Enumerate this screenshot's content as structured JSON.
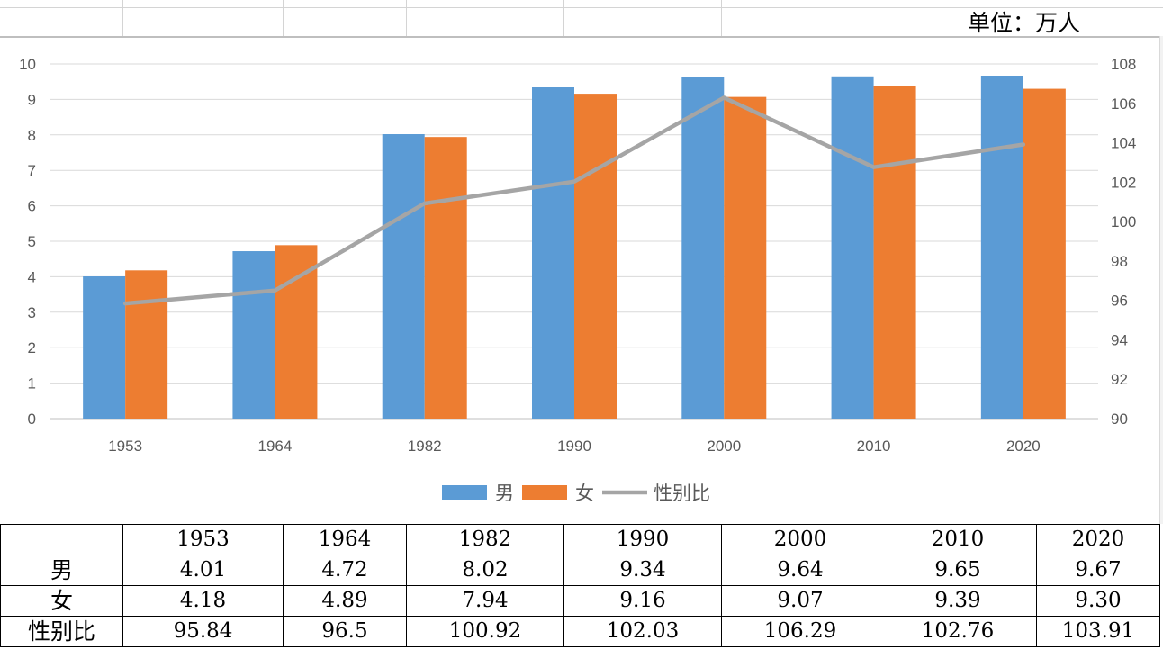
{
  "unit_label": "单位：万人",
  "chart_data": {
    "type": "bar",
    "categories": [
      "1953",
      "1964",
      "1982",
      "1990",
      "2000",
      "2010",
      "2020"
    ],
    "series": [
      {
        "name": "男",
        "type": "bar",
        "axis": "left",
        "color": "#5b9bd5",
        "values": [
          4.01,
          4.72,
          8.02,
          9.34,
          9.64,
          9.65,
          9.67
        ]
      },
      {
        "name": "女",
        "type": "bar",
        "axis": "left",
        "color": "#ed7d31",
        "values": [
          4.18,
          4.89,
          7.94,
          9.16,
          9.07,
          9.39,
          9.3
        ]
      },
      {
        "name": "性别比",
        "type": "line",
        "axis": "right",
        "color": "#a5a5a5",
        "values": [
          95.84,
          96.5,
          100.92,
          102.03,
          106.29,
          102.76,
          103.91
        ]
      }
    ],
    "y_left": {
      "min": 0,
      "max": 10,
      "step": 1,
      "ticks": [
        "0",
        "1",
        "2",
        "3",
        "4",
        "5",
        "6",
        "7",
        "8",
        "9",
        "10"
      ]
    },
    "y_right": {
      "min": 90,
      "max": 108,
      "step": 2,
      "ticks": [
        "90",
        "92",
        "94",
        "96",
        "98",
        "100",
        "102",
        "104",
        "106",
        "108"
      ]
    },
    "grid": true,
    "legend_position": "bottom"
  },
  "table": {
    "header": [
      "",
      "1953",
      "1964",
      "1982",
      "1990",
      "2000",
      "2010",
      "2020"
    ],
    "rows": [
      {
        "label": "男",
        "values": [
          "4.01",
          "4.72",
          "8.02",
          "9.34",
          "9.64",
          "9.65",
          "9.67"
        ]
      },
      {
        "label": "女",
        "values": [
          "4.18",
          "4.89",
          "7.94",
          "9.16",
          "9.07",
          "9.39",
          "9.30"
        ]
      },
      {
        "label": "性别比",
        "values": [
          "95.84",
          "96.5",
          "100.92",
          "102.03",
          "106.29",
          "102.76",
          "103.91"
        ]
      }
    ]
  }
}
